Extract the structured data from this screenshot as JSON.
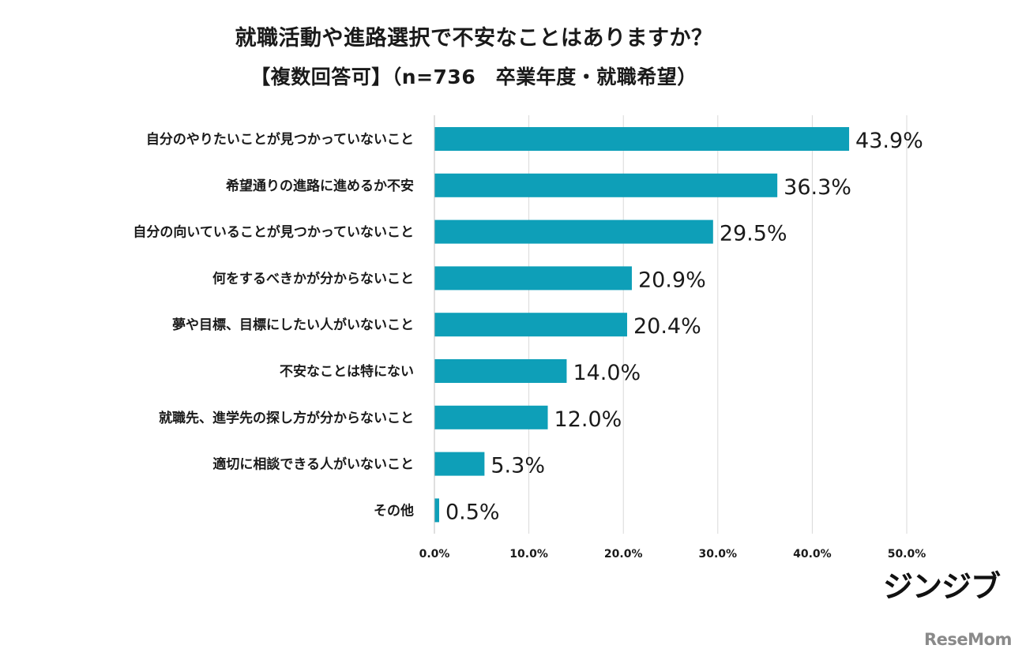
{
  "chart_data": {
    "type": "bar",
    "orientation": "horizontal",
    "title": "就職活動や進路選択で不安なことはありますか？",
    "subtitle": "【複数回答可】（n=736　卒業年度・就職希望）",
    "categories": [
      "自分のやりたいことが見つかっていないこと",
      "希望通りの進路に進めるか不安",
      "自分の向いていることが見つかっていないこと",
      "何をするべきかが分からないこと",
      "夢や目標、目標にしたい人がいないこと",
      "不安なことは特にない",
      "就職先、進学先の探し方が分からないこと",
      "適切に相談できる人がいないこと",
      "その他"
    ],
    "values": [
      43.9,
      36.3,
      29.5,
      20.9,
      20.4,
      14.0,
      12.0,
      5.3,
      0.5
    ],
    "value_labels": [
      "43.9%",
      "36.3%",
      "29.5%",
      "20.9%",
      "20.4%",
      "14.0%",
      "12.0%",
      "5.3%",
      "0.5%"
    ],
    "xlim": [
      0,
      50
    ],
    "xticks": [
      "0.0%",
      "10.0%",
      "20.0%",
      "30.0%",
      "40.0%",
      "50.0%"
    ],
    "grid": true,
    "bar_color": "#0e9fb8",
    "grid_color": "#d9d9d9"
  },
  "logo": "ジンジブ",
  "watermark": "ReseMom"
}
